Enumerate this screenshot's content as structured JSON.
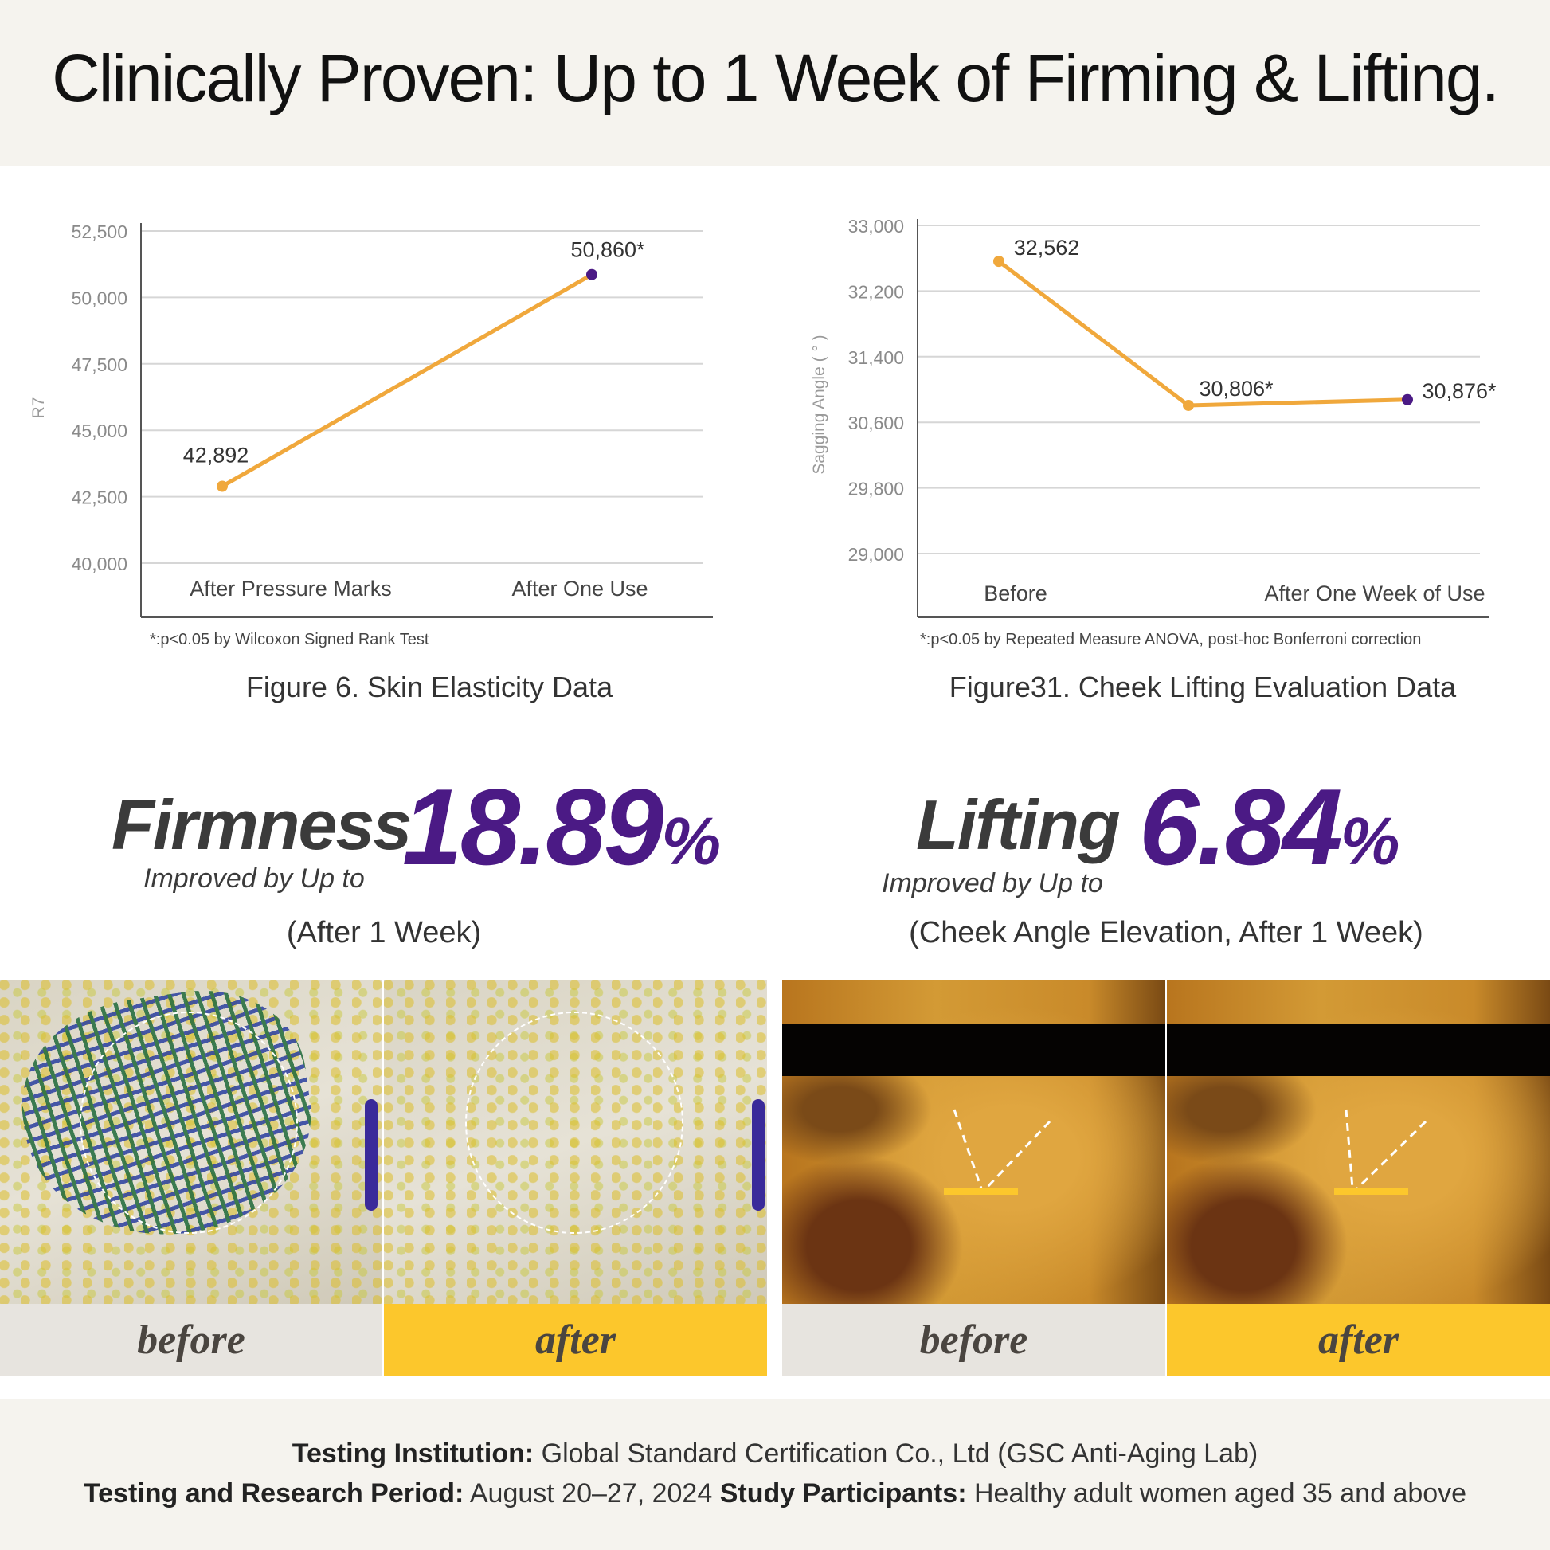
{
  "title": "Clinically Proven: Up to 1 Week of Firming & Lifting.",
  "colors": {
    "line": "#f0a83c",
    "end_point": "#4b1a85",
    "accent": "#4b1a85",
    "after_label_bg": "#fcc72c",
    "before_label_bg": "#e7e4df",
    "band_bg": "#f5f3ee"
  },
  "chart_data": [
    {
      "type": "line",
      "title": "Figure 6. Skin Elasticity Data",
      "ylabel": "R7",
      "xlabel": "",
      "categories": [
        "After Pressure Marks",
        "After One Use"
      ],
      "values": [
        42892,
        50860
      ],
      "data_labels": [
        "42,892",
        "50,860*"
      ],
      "yticks": [
        "40,000",
        "42,500",
        "45,000",
        "47,500",
        "50,000",
        "52,500"
      ],
      "ytick_values": [
        40000,
        42500,
        45000,
        47500,
        50000,
        52500
      ],
      "ylim": [
        40000,
        52500
      ],
      "grid": true,
      "footnote": "*:p<0.05 by Wilcoxon Signed Rank Test"
    },
    {
      "type": "line",
      "title": "Figure31. Cheek Lifting Evaluation Data",
      "ylabel": "Sagging Angle ( ° )",
      "xlabel": "",
      "categories": [
        "Before",
        "",
        "After One Week of Use"
      ],
      "values": [
        32562,
        30806,
        30876
      ],
      "data_labels": [
        "32,562",
        "30,806*",
        "30,876*"
      ],
      "yticks": [
        "29,000",
        "29,800",
        "30,600",
        "31,400",
        "32,200",
        "33,000"
      ],
      "ytick_values": [
        29000,
        29800,
        30600,
        31400,
        32200,
        33000
      ],
      "ylim": [
        29000,
        33000
      ],
      "grid": true,
      "footnote": "*:p<0.05 by Repeated Measure ANOVA, post-hoc Bonferroni correction"
    }
  ],
  "stats": [
    {
      "word": "Firmness",
      "number": "18.89",
      "unit": "%",
      "improved": "Improved by Up to",
      "note": "(After 1 Week)"
    },
    {
      "word": "Lifting",
      "number": "6.84",
      "unit": "%",
      "improved": "Improved by Up to",
      "note": "(Cheek Angle Elevation, After 1 Week)"
    }
  ],
  "photos": {
    "before": "before",
    "after": "after"
  },
  "footer": {
    "line1_label": "Testing Institution:",
    "line1_value": " Global Standard Certification Co., Ltd (GSC Anti-Aging Lab)",
    "period_label": "Testing and Research Period:",
    "period_value": " August 20–27, 2024 ",
    "participants_label": "Study Participants:",
    "participants_value": " Healthy adult women aged 35 and above"
  }
}
